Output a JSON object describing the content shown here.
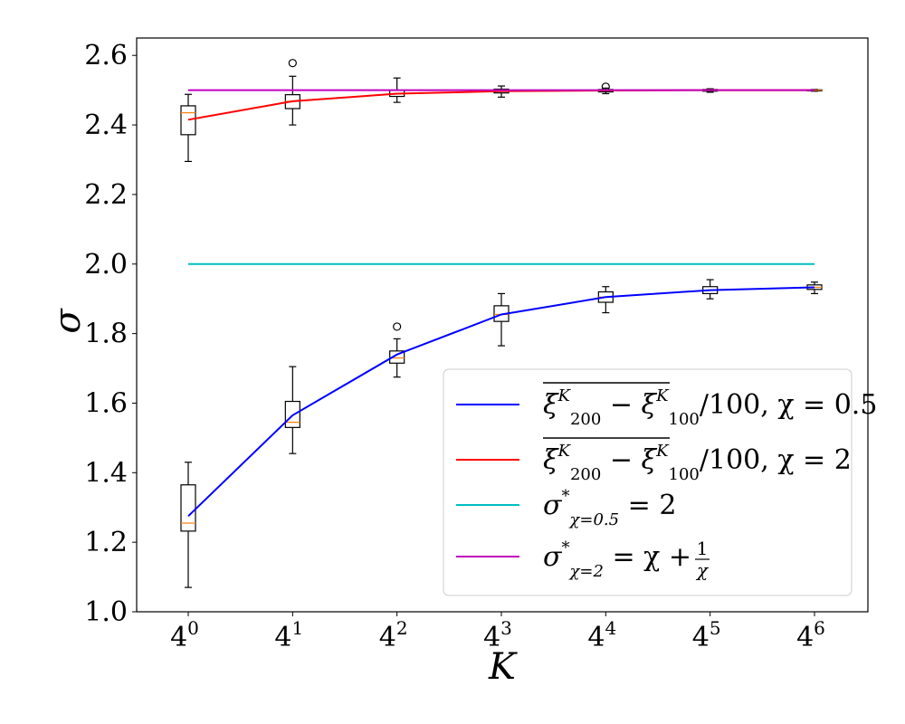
{
  "chart_data": {
    "type": "line",
    "xlabel": "K",
    "ylabel": "σ",
    "x_scale": "log base 4",
    "ylim": [
      1.0,
      2.65
    ],
    "xticks": [
      {
        "base": "4",
        "exp": "0"
      },
      {
        "base": "4",
        "exp": "1"
      },
      {
        "base": "4",
        "exp": "2"
      },
      {
        "base": "4",
        "exp": "3"
      },
      {
        "base": "4",
        "exp": "4"
      },
      {
        "base": "4",
        "exp": "5"
      },
      {
        "base": "4",
        "exp": "6"
      }
    ],
    "yticks": [
      "1.0",
      "1.2",
      "1.4",
      "1.6",
      "1.8",
      "2.0",
      "2.2",
      "2.4",
      "2.6"
    ],
    "ytick_values": [
      1.0,
      1.2,
      1.4,
      1.6,
      1.8,
      2.0,
      2.2,
      2.4,
      2.6
    ],
    "x": [
      1,
      4,
      16,
      64,
      256,
      1024,
      4096
    ],
    "grid": false,
    "legend_position": "lower-right",
    "series": [
      {
        "color": "#0000ff",
        "values": [
          1.275,
          1.565,
          1.74,
          1.855,
          1.905,
          1.925,
          1.933
        ],
        "legend": {
          "prefix": "ξ",
          "sub1": "200",
          "sup1": "K",
          "mid": " − ξ",
          "sub2": "100",
          "sup2": "K",
          "suffix": "/100, χ = 0.5"
        }
      },
      {
        "color": "#ff0000",
        "values": [
          2.415,
          2.468,
          2.49,
          2.497,
          2.499,
          2.5,
          2.5
        ],
        "legend": {
          "prefix": "ξ",
          "sub1": "200",
          "sup1": "K",
          "mid": " − ξ",
          "sub2": "100",
          "sup2": "K",
          "suffix": "/100, χ = 2"
        }
      },
      {
        "color": "#00bfbf",
        "values": [
          2.0,
          2.0,
          2.0,
          2.0,
          2.0,
          2.0,
          2.0
        ],
        "legend": {
          "prefix": "σ",
          "sup1": "*",
          "sub1": "χ=0.5",
          "suffix": " = 2"
        }
      },
      {
        "color": "#bf00bf",
        "values": [
          2.5,
          2.5,
          2.5,
          2.5,
          2.5,
          2.5,
          2.5
        ],
        "legend": {
          "prefix": "σ",
          "sup1": "*",
          "sub1": "χ=2",
          "suffix": " = χ + ",
          "frac_num": "1",
          "frac_den": "χ"
        }
      }
    ],
    "boxplots": [
      {
        "group": "χ = 0.5",
        "boxes": [
          {
            "whislo": 1.07,
            "q1": 1.232,
            "med": 1.255,
            "q3": 1.365,
            "whishi": 1.43,
            "fliers": []
          },
          {
            "whislo": 1.455,
            "q1": 1.53,
            "med": 1.545,
            "q3": 1.605,
            "whishi": 1.705,
            "fliers": []
          },
          {
            "whislo": 1.675,
            "q1": 1.715,
            "med": 1.73,
            "q3": 1.75,
            "whishi": 1.785,
            "fliers": [
              1.82
            ]
          },
          {
            "whislo": 1.765,
            "q1": 1.835,
            "med": 1.855,
            "q3": 1.88,
            "whishi": 1.915,
            "fliers": []
          },
          {
            "whislo": 1.86,
            "q1": 1.89,
            "med": 1.905,
            "q3": 1.92,
            "whishi": 1.935,
            "fliers": []
          },
          {
            "whislo": 1.9,
            "q1": 1.915,
            "med": 1.925,
            "q3": 1.935,
            "whishi": 1.955,
            "fliers": []
          },
          {
            "whislo": 1.915,
            "q1": 1.927,
            "med": 1.933,
            "q3": 1.94,
            "whishi": 1.948,
            "fliers": []
          }
        ]
      },
      {
        "group": "χ = 2",
        "boxes": [
          {
            "whislo": 2.295,
            "q1": 2.372,
            "med": 2.435,
            "q3": 2.455,
            "whishi": 2.488,
            "fliers": []
          },
          {
            "whislo": 2.4,
            "q1": 2.447,
            "med": 2.468,
            "q3": 2.487,
            "whishi": 2.54,
            "fliers": [
              2.578
            ]
          },
          {
            "whislo": 2.465,
            "q1": 2.482,
            "med": 2.49,
            "q3": 2.5,
            "whishi": 2.535,
            "fliers": []
          },
          {
            "whislo": 2.48,
            "q1": 2.492,
            "med": 2.497,
            "q3": 2.503,
            "whishi": 2.512,
            "fliers": []
          },
          {
            "whislo": 2.49,
            "q1": 2.495,
            "med": 2.499,
            "q3": 2.502,
            "whishi": 2.506,
            "fliers": [
              2.51
            ]
          },
          {
            "whislo": 2.494,
            "q1": 2.497,
            "med": 2.5,
            "q3": 2.502,
            "whishi": 2.504,
            "fliers": []
          },
          {
            "whislo": 2.497,
            "q1": 2.498,
            "med": 2.5,
            "q3": 2.501,
            "whishi": 2.502,
            "fliers": []
          }
        ]
      }
    ],
    "box_color": "#000000",
    "median_color": "#ff7f0e"
  }
}
